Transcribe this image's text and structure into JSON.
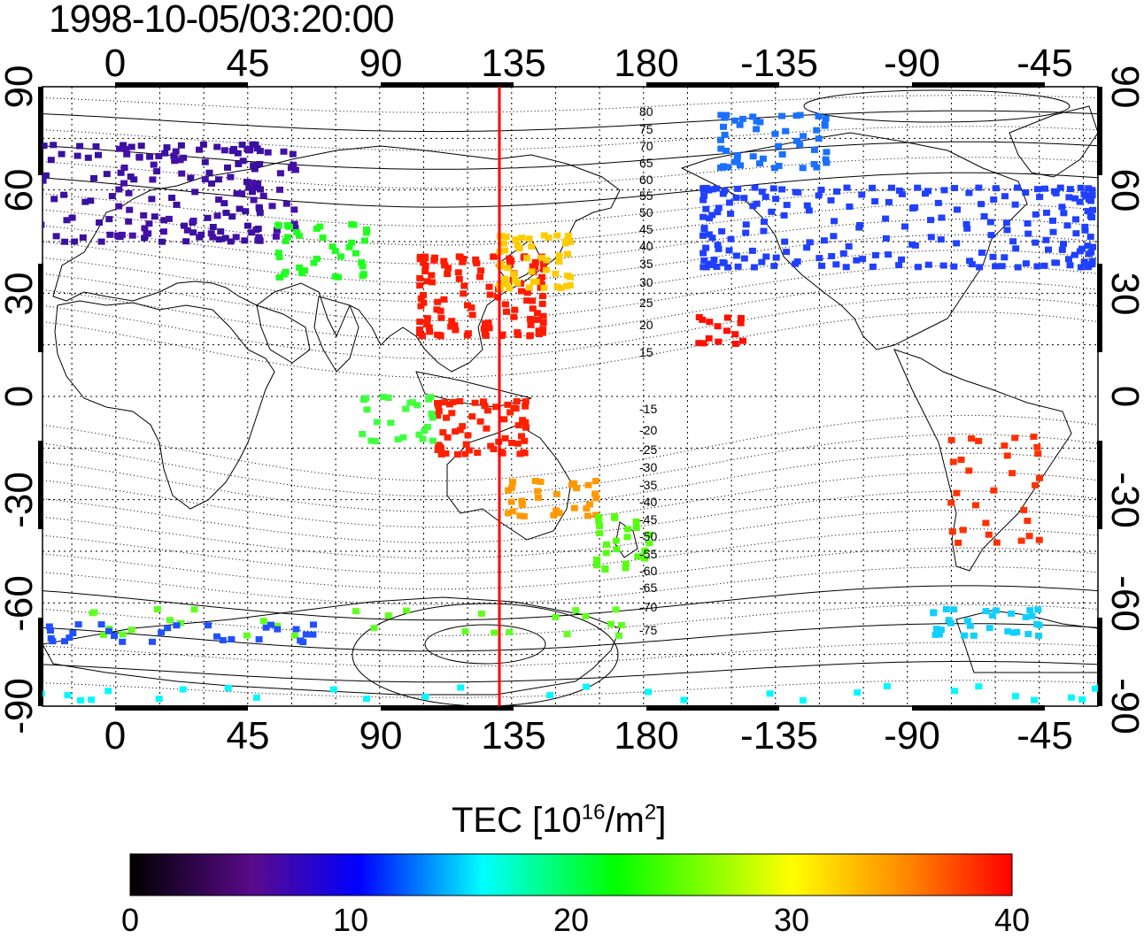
{
  "title": "1998-10-05/03:20:00",
  "map": {
    "top_axis_labels": [
      "0",
      "45",
      "90",
      "135",
      "180",
      "-135",
      "-90",
      "-45"
    ],
    "bottom_axis_labels": [
      "0",
      "45",
      "90",
      "135",
      "180",
      "-135",
      "-90",
      "-45"
    ],
    "left_axis_labels": [
      "90",
      "60",
      "30",
      "0",
      "-30",
      "-60",
      "-90"
    ],
    "right_axis_labels": [
      "90",
      "60",
      "30",
      "0",
      "-30",
      "-60",
      "-90"
    ],
    "meridian_line_color": "#ff0000",
    "meridian_longitude": 130,
    "magnetic_latitude_labels_north": [
      "80",
      "75",
      "70",
      "65",
      "60",
      "55",
      "50",
      "45",
      "40",
      "35",
      "30",
      "25",
      "20",
      "15"
    ],
    "magnetic_latitude_labels_south": [
      "-15",
      "-20",
      "-25",
      "-30",
      "-35",
      "-40",
      "-45",
      "-50",
      "-55",
      "-60",
      "-65",
      "-70",
      "-75"
    ]
  },
  "colorbar": {
    "title_main": "TEC  [10",
    "title_sup1": "16",
    "title_mid": "/m",
    "title_sup2": "2",
    "title_end": "]",
    "min": 0,
    "max": 40,
    "tick_labels": [
      "0",
      "10",
      "20",
      "30",
      "40"
    ],
    "colormap": [
      "#000000",
      "#5a0a8c",
      "#0000ff",
      "#00ffff",
      "#00ff00",
      "#ffff00",
      "#ff8800",
      "#ff0000"
    ]
  }
}
